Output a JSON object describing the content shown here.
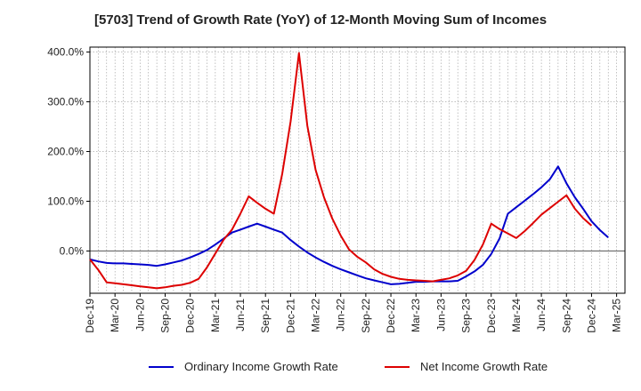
{
  "title": "[5703]  Trend of Growth Rate (YoY) of 12-Month Moving Sum of Incomes",
  "colors": {
    "ordinary": "#0000cc",
    "net": "#dd0000",
    "grid": "#999999",
    "zero_line": "#555555",
    "axis": "#000000"
  },
  "chart_data": {
    "type": "line",
    "title": "[5703]  Trend of Growth Rate (YoY) of 12-Month Moving Sum of Incomes",
    "xlabel": "",
    "ylabel": "",
    "ylim": [
      -85,
      410
    ],
    "y_ticks": [
      0,
      100,
      200,
      300,
      400
    ],
    "y_tick_labels": [
      "0.0%",
      "100.0%",
      "200.0%",
      "300.0%",
      "400.0%"
    ],
    "x_tick_labels": [
      "Dec-19",
      "Mar-20",
      "Jun-20",
      "Sep-20",
      "Dec-20",
      "Mar-21",
      "Jun-21",
      "Sep-21",
      "Dec-21",
      "Mar-22",
      "Jun-22",
      "Sep-22",
      "Dec-22",
      "Mar-23",
      "Jun-23",
      "Sep-23",
      "Dec-23",
      "Mar-24",
      "Jun-24",
      "Sep-24",
      "Dec-24",
      "Mar-25"
    ],
    "x_count": 64,
    "grid": true,
    "legend_position": "bottom",
    "series": [
      {
        "name": "Ordinary Income Growth Rate",
        "color": "#0000cc",
        "x_start": 0,
        "values": [
          -17,
          -21,
          -24,
          -25,
          -25,
          -26,
          -27,
          -28,
          -30,
          -27,
          -23,
          -19,
          -13,
          -6,
          2,
          13,
          25,
          37,
          43,
          49,
          55,
          49,
          43,
          37,
          22,
          9,
          -3,
          -13,
          -22,
          -30,
          -37,
          -43,
          -49,
          -55,
          -59,
          -63,
          -67,
          -66,
          -64,
          -62,
          -62,
          -61,
          -61,
          -61,
          -60,
          -51,
          -41,
          -28,
          -6,
          25,
          75,
          88,
          101,
          114,
          128,
          144,
          170,
          136,
          108,
          85,
          60,
          42,
          27
        ]
      },
      {
        "name": "Net Income Growth Rate",
        "color": "#dd0000",
        "x_start": 0,
        "values": [
          -17,
          -38,
          -63,
          -65,
          -67,
          -69,
          -71,
          -73,
          -75,
          -73,
          -70,
          -68,
          -64,
          -56,
          -33,
          -5,
          23,
          43,
          75,
          110,
          97,
          85,
          75,
          155,
          260,
          398,
          252,
          163,
          108,
          65,
          31,
          3,
          -12,
          -23,
          -37,
          -46,
          -52,
          -56,
          -58,
          -59,
          -60,
          -61,
          -58,
          -55,
          -49,
          -40,
          -18,
          13,
          55,
          44,
          35,
          26,
          40,
          56,
          73,
          86,
          99,
          112,
          85,
          66,
          51
        ]
      }
    ]
  },
  "legend": [
    {
      "label": "Ordinary Income Growth Rate",
      "color": "#0000cc"
    },
    {
      "label": "Net Income Growth Rate",
      "color": "#dd0000"
    }
  ]
}
